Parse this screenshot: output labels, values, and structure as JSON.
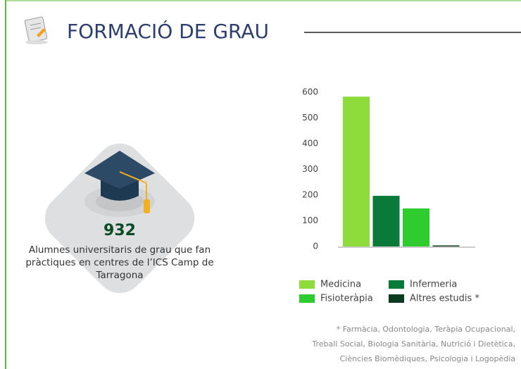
{
  "header": {
    "title": "FORMACIÓ DE GRAU"
  },
  "stat": {
    "value": 932,
    "description": [
      "Alumnes universitaris de grau que fan",
      "pràctiques en centres de l’ICS Camp de",
      "Tarragona"
    ]
  },
  "chart_data": {
    "type": "bar",
    "categories": [
      "Medicina",
      "Infermeria",
      "Fisioteràpia",
      "Altres estudis *"
    ],
    "values": [
      583,
      197,
      148,
      4
    ],
    "colors": [
      "#8ddc3c",
      "#0a7a3a",
      "#2ecc2e",
      "#0b3a1e"
    ],
    "ylim": [
      0,
      600
    ],
    "yticks": [
      0,
      100,
      200,
      300,
      400,
      500,
      600
    ],
    "legend": "bottom"
  },
  "footnote": [
    "* Farmàcia, Odontologia, Teràpia Ocupacional,",
    "Treball Social, Biologia Sanitària, Nutrició i Dietètica,",
    "Ciències Biomèdiques, Psicologia i Logopèdia"
  ]
}
